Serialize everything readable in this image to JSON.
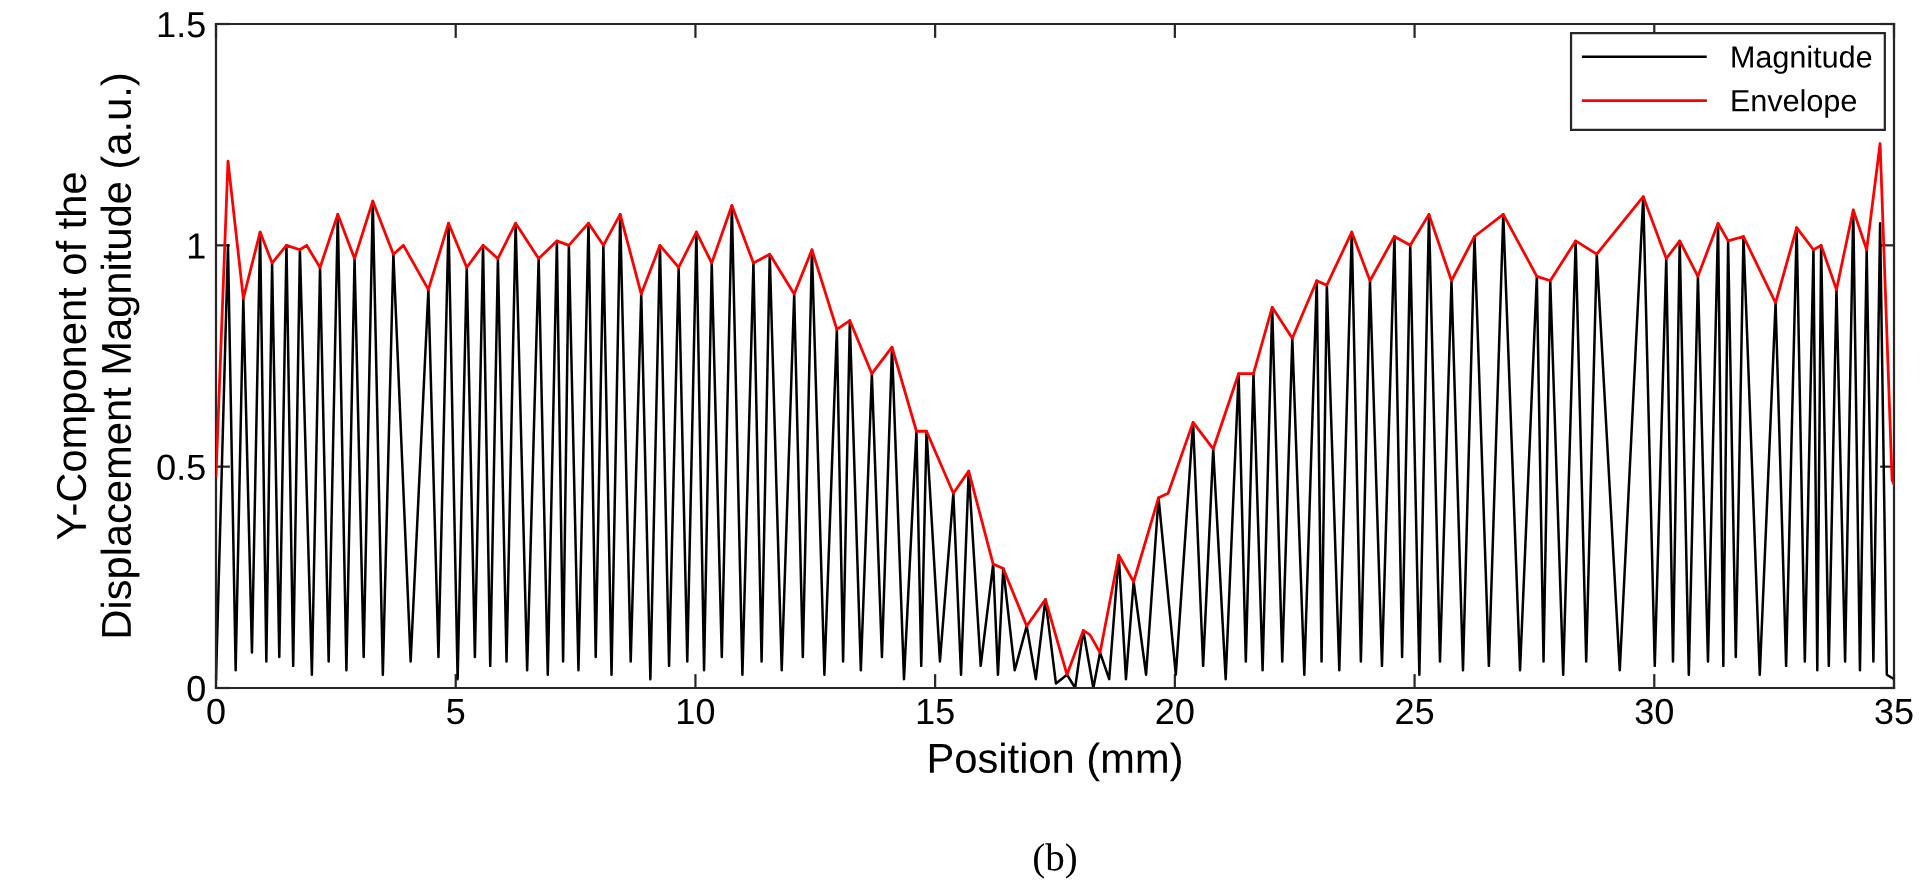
{
  "chart_data": {
    "type": "line",
    "xlabel": "Position (mm)",
    "ylabel": "Y-Component of the\nDisplacement Magnitude (a.u.)",
    "xlim": [
      0,
      35
    ],
    "xticks": [
      0,
      5,
      10,
      15,
      20,
      25,
      30,
      35
    ],
    "ylim": [
      0,
      1.5
    ],
    "yticks": [
      0,
      0.5,
      1,
      1.5
    ],
    "grid": false,
    "legend": "top right",
    "line_style": "solid",
    "marker": "none",
    "annotations": [
      "(b)"
    ],
    "series": [
      {
        "name": "Magnitude",
        "color": "#000000",
        "x": [
          0,
          0.25,
          0.41,
          0.57,
          0.75,
          0.92,
          1.05,
          1.17,
          1.32,
          1.47,
          1.61,
          1.75,
          2.0,
          2.17,
          2.35,
          2.54,
          2.72,
          2.89,
          3.08,
          3.27,
          3.48,
          3.7,
          4.06,
          4.43,
          4.64,
          4.85,
          5.04,
          5.23,
          5.4,
          5.57,
          5.72,
          5.88,
          6.06,
          6.25,
          6.49,
          6.73,
          6.92,
          7.11,
          7.24,
          7.36,
          7.56,
          7.77,
          7.92,
          8.08,
          8.25,
          8.43,
          8.65,
          8.87,
          9.06,
          9.26,
          9.45,
          9.65,
          9.83,
          10.02,
          10.18,
          10.34,
          10.55,
          10.76,
          10.98,
          11.21,
          11.38,
          11.55,
          11.8,
          12.06,
          12.24,
          12.43,
          12.69,
          12.95,
          13.08,
          13.22,
          13.45,
          13.68,
          13.89,
          14.1,
          14.35,
          14.61,
          14.71,
          14.82,
          15.1,
          15.38,
          15.54,
          15.7,
          15.95,
          16.21,
          16.31,
          16.42,
          16.66,
          16.91,
          17.1,
          17.3,
          17.52,
          17.75,
          17.92,
          18.09,
          18.3,
          18.44,
          18.63,
          18.83,
          18.98,
          19.14,
          19.4,
          19.66,
          20.02,
          20.38,
          20.59,
          20.8,
          21.06,
          21.33,
          21.48,
          21.64,
          21.83,
          22.03,
          22.24,
          22.45,
          22.7,
          22.96,
          23.06,
          23.17,
          23.43,
          23.69,
          23.88,
          24.07,
          24.32,
          24.58,
          24.74,
          24.91,
          25.1,
          25.3,
          25.53,
          25.77,
          26.01,
          26.25,
          26.55,
          26.85,
          27.2,
          27.55,
          27.69,
          27.83,
          28.1,
          28.36,
          28.58,
          28.8,
          29.28,
          29.77,
          30.01,
          30.25,
          30.39,
          30.53,
          30.72,
          30.91,
          31.12,
          31.33,
          31.44,
          31.54,
          31.7,
          31.86,
          32.2,
          32.53,
          32.75,
          32.97,
          33.14,
          33.32,
          33.4,
          33.48,
          33.64,
          33.8,
          33.98,
          34.15,
          34.29,
          34.43,
          34.57,
          34.71,
          34.85,
          35
        ],
        "values": [
          0.02,
          1.0,
          0.04,
          0.88,
          0.08,
          1.03,
          0.06,
          0.96,
          0.07,
          1.0,
          0.05,
          0.99,
          0.03,
          0.95,
          0.06,
          1.07,
          0.04,
          0.97,
          0.07,
          1.1,
          0.03,
          0.98,
          0.06,
          0.9,
          0.07,
          1.05,
          0.02,
          0.95,
          0.07,
          1.0,
          0.05,
          0.97,
          0.06,
          1.05,
          0.04,
          0.97,
          0.03,
          1.01,
          0.06,
          1.0,
          0.04,
          1.05,
          0.07,
          1.0,
          0.03,
          1.07,
          0.06,
          0.89,
          0.02,
          1.0,
          0.05,
          0.95,
          0.06,
          1.03,
          0.04,
          0.96,
          0.07,
          1.09,
          0.03,
          0.96,
          0.06,
          0.98,
          0.04,
          0.89,
          0.07,
          0.99,
          0.03,
          0.81,
          0.06,
          0.83,
          0.04,
          0.71,
          0.07,
          0.77,
          0.02,
          0.58,
          0.05,
          0.58,
          0.06,
          0.44,
          0.03,
          0.49,
          0.05,
          0.28,
          0.03,
          0.27,
          0.04,
          0.14,
          0.02,
          0.2,
          0.01,
          0.03,
          0.0,
          0.13,
          0.0,
          0.08,
          0.02,
          0.3,
          0.02,
          0.24,
          0.03,
          0.43,
          0.03,
          0.6,
          0.05,
          0.54,
          0.02,
          0.71,
          0.06,
          0.71,
          0.04,
          0.86,
          0.06,
          0.79,
          0.03,
          0.92,
          0.06,
          0.91,
          0.04,
          1.03,
          0.06,
          0.92,
          0.05,
          1.02,
          0.07,
          1.0,
          0.03,
          1.07,
          0.06,
          0.92,
          0.04,
          1.02,
          0.05,
          1.07,
          0.04,
          0.93,
          0.06,
          0.92,
          0.03,
          1.01,
          0.06,
          0.98,
          0.04,
          1.11,
          0.05,
          0.97,
          0.06,
          1.01,
          0.03,
          0.93,
          0.06,
          1.05,
          0.05,
          1.01,
          0.07,
          1.02,
          0.03,
          0.87,
          0.05,
          1.04,
          0.06,
          0.99,
          0.04,
          1.0,
          0.05,
          0.9,
          0.06,
          1.08,
          0.04,
          0.99,
          0.06,
          1.05,
          0.03,
          0.02
        ]
      },
      {
        "name": "Envelope",
        "color": "#ff0000",
        "x": [
          0,
          0.25,
          0.57,
          0.92,
          1.17,
          1.47,
          1.75,
          1.89,
          2.17,
          2.54,
          2.89,
          3.27,
          3.7,
          3.91,
          4.43,
          4.85,
          5.23,
          5.57,
          5.88,
          6.25,
          6.73,
          7.11,
          7.36,
          7.77,
          8.08,
          8.43,
          8.87,
          9.26,
          9.65,
          10.02,
          10.34,
          10.76,
          11.21,
          11.55,
          12.06,
          12.43,
          12.95,
          13.22,
          13.68,
          14.1,
          14.61,
          14.82,
          15.38,
          15.7,
          16.21,
          16.42,
          16.91,
          17.3,
          17.75,
          18.09,
          18.23,
          18.44,
          18.83,
          19.14,
          19.66,
          19.86,
          20.38,
          20.8,
          21.33,
          21.64,
          22.03,
          22.45,
          22.96,
          23.17,
          23.69,
          24.07,
          24.58,
          24.91,
          25.3,
          25.77,
          26.25,
          26.85,
          27.55,
          27.83,
          28.36,
          28.8,
          29.77,
          30.25,
          30.53,
          30.91,
          31.33,
          31.54,
          31.86,
          32.53,
          32.97,
          33.32,
          33.48,
          33.8,
          34.15,
          34.43,
          34.71,
          34.96,
          35
        ],
        "values": [
          0.48,
          1.19,
          0.88,
          1.03,
          0.96,
          1.0,
          0.99,
          1.0,
          0.95,
          1.07,
          0.97,
          1.1,
          0.98,
          1.0,
          0.9,
          1.05,
          0.95,
          1.0,
          0.97,
          1.05,
          0.97,
          1.01,
          1.0,
          1.05,
          1.0,
          1.07,
          0.89,
          1.0,
          0.95,
          1.03,
          0.96,
          1.09,
          0.96,
          0.98,
          0.89,
          0.99,
          0.81,
          0.83,
          0.71,
          0.77,
          0.58,
          0.58,
          0.44,
          0.49,
          0.28,
          0.27,
          0.14,
          0.2,
          0.03,
          0.13,
          0.12,
          0.08,
          0.3,
          0.24,
          0.43,
          0.44,
          0.6,
          0.54,
          0.71,
          0.71,
          0.86,
          0.79,
          0.92,
          0.91,
          1.03,
          0.92,
          1.02,
          1.0,
          1.07,
          0.92,
          1.02,
          1.07,
          0.93,
          0.92,
          1.01,
          0.98,
          1.11,
          0.97,
          1.01,
          0.93,
          1.05,
          1.01,
          1.02,
          0.87,
          1.04,
          0.99,
          1.0,
          0.9,
          1.08,
          0.99,
          1.23,
          0.47,
          0.46
        ]
      }
    ]
  }
}
